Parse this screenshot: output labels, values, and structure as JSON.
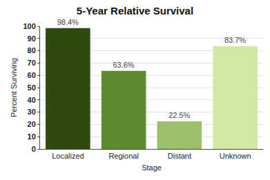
{
  "chart_data": {
    "type": "bar",
    "title": "5-Year Relative Survival",
    "x_label": "Stage",
    "y_label": "Percent Surviving",
    "categories": [
      "Localized",
      "Regional",
      "Distant",
      "Unknown"
    ],
    "values": [
      98.4,
      63.6,
      22.5,
      83.7
    ],
    "value_labels": [
      "98.4%",
      "63.6%",
      "22.5%",
      "83.7%"
    ],
    "colors": [
      "#2e4a0c",
      "#5f8a30",
      "#9cbf69",
      "#d0e8a6"
    ],
    "ylim": [
      0,
      100
    ],
    "yticks": [
      0,
      10,
      20,
      30,
      40,
      50,
      60,
      70,
      80,
      90,
      100
    ],
    "grid": true,
    "data_labels": true
  }
}
